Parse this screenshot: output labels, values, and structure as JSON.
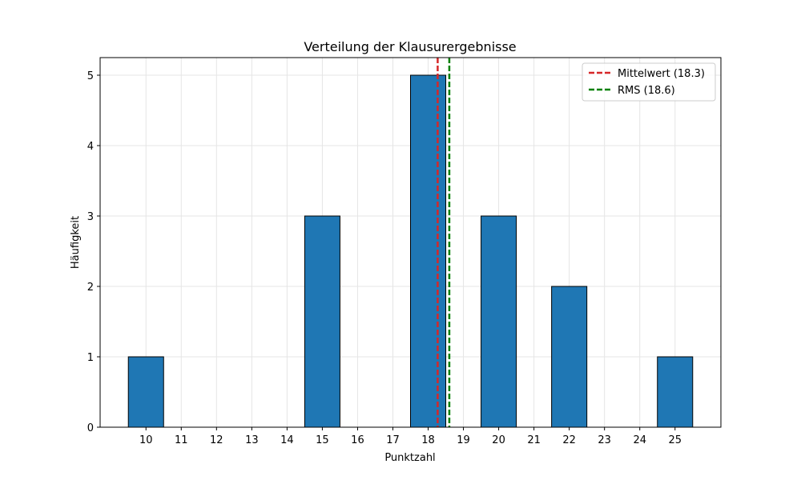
{
  "chart_data": {
    "type": "bar",
    "title": "Verteilung der Klausurergebnisse",
    "xlabel": "Punktzahl",
    "ylabel": "Häufigkeit",
    "xlim": [
      8.7,
      26.3
    ],
    "ylim": [
      0,
      5.25
    ],
    "x_ticks": [
      10,
      11,
      12,
      13,
      14,
      15,
      16,
      17,
      18,
      19,
      20,
      21,
      22,
      23,
      24,
      25
    ],
    "y_ticks": [
      0,
      1,
      2,
      3,
      4,
      5
    ],
    "bar_width": 1,
    "bars": [
      {
        "x": 10,
        "value": 1
      },
      {
        "x": 15,
        "value": 3
      },
      {
        "x": 18,
        "value": 5
      },
      {
        "x": 20,
        "value": 3
      },
      {
        "x": 22,
        "value": 2
      },
      {
        "x": 25,
        "value": 1
      }
    ],
    "bar_color": "#1f77b4",
    "bar_edge_color": "#000000",
    "grid": true,
    "reference_lines": [
      {
        "label": "Mittelwert (18.3)",
        "x": 18.27,
        "color": "#d62728",
        "style": "dashed"
      },
      {
        "label": "RMS (18.6)",
        "x": 18.6,
        "color": "#008000",
        "style": "dashed"
      }
    ],
    "legend_position": "top-right"
  }
}
